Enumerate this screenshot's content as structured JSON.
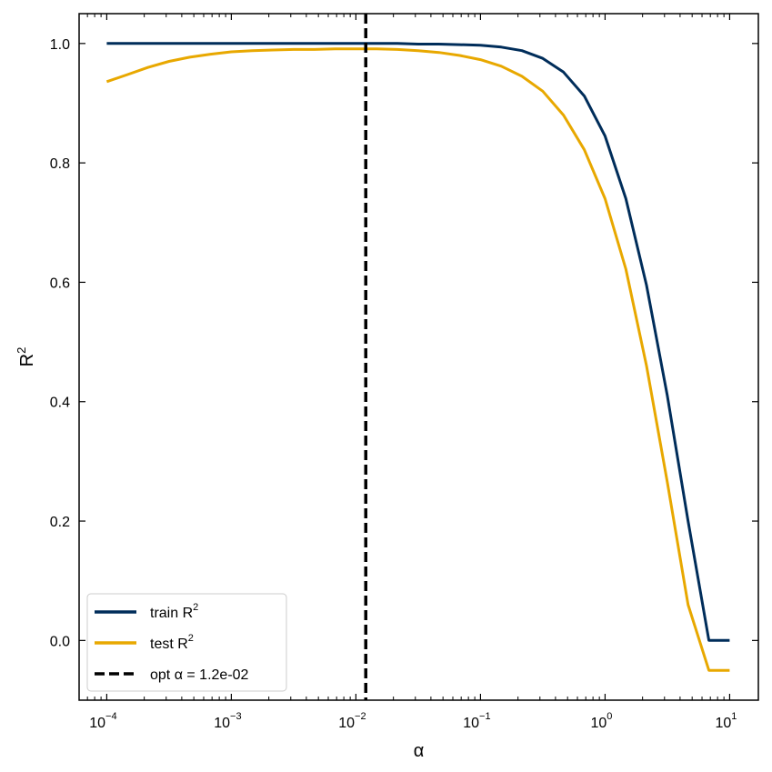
{
  "chart_data": {
    "type": "line",
    "xlabel": "α",
    "ylabel": "R",
    "ylabel_sup": "2",
    "x_scale": "log",
    "xlim": [
      6e-05,
      17
    ],
    "ylim": [
      -0.1,
      1.05
    ],
    "x_ticks": [
      {
        "value": 0.0001,
        "base": "10",
        "exp": "−4"
      },
      {
        "value": 0.001,
        "base": "10",
        "exp": "−3"
      },
      {
        "value": 0.01,
        "base": "10",
        "exp": "−2"
      },
      {
        "value": 0.1,
        "base": "10",
        "exp": "−1"
      },
      {
        "value": 1,
        "base": "10",
        "exp": "0"
      },
      {
        "value": 10,
        "base": "10",
        "exp": "1"
      }
    ],
    "y_ticks": [
      {
        "value": 0.0,
        "label": "0.0"
      },
      {
        "value": 0.2,
        "label": "0.2"
      },
      {
        "value": 0.4,
        "label": "0.4"
      },
      {
        "value": 0.6,
        "label": "0.6"
      },
      {
        "value": 0.8,
        "label": "0.8"
      },
      {
        "value": 1.0,
        "label": "1.0"
      }
    ],
    "grid": false,
    "legend_position": "lower-left",
    "series": [
      {
        "name": "train R",
        "name_sup": "2",
        "color": "#002d5a",
        "style": "solid",
        "x": [
          0.0001,
          0.000147,
          0.000215,
          0.000316,
          0.000464,
          0.000681,
          0.001,
          0.00147,
          0.00215,
          0.00316,
          0.00464,
          0.00681,
          0.01,
          0.0147,
          0.0215,
          0.0316,
          0.0464,
          0.0681,
          0.1,
          0.147,
          0.215,
          0.316,
          0.464,
          0.681,
          1.0,
          1.47,
          2.15,
          3.16,
          4.64,
          6.81,
          10.0
        ],
        "y": [
          1.0,
          1.0,
          1.0,
          1.0,
          1.0,
          1.0,
          1.0,
          1.0,
          1.0,
          1.0,
          1.0,
          1.0,
          1.0,
          1.0,
          1.0,
          0.999,
          0.999,
          0.998,
          0.997,
          0.994,
          0.988,
          0.975,
          0.952,
          0.912,
          0.845,
          0.74,
          0.595,
          0.41,
          0.2,
          0.0,
          0.0
        ]
      },
      {
        "name": "test R",
        "name_sup": "2",
        "color": "#e8a800",
        "style": "solid",
        "x": [
          0.0001,
          0.000147,
          0.000215,
          0.000316,
          0.000464,
          0.000681,
          0.001,
          0.00147,
          0.00215,
          0.00316,
          0.00464,
          0.00681,
          0.01,
          0.0147,
          0.0215,
          0.0316,
          0.0464,
          0.0681,
          0.1,
          0.147,
          0.215,
          0.316,
          0.464,
          0.681,
          1.0,
          1.47,
          2.15,
          3.16,
          4.64,
          6.81,
          10.0
        ],
        "y": [
          0.936,
          0.948,
          0.96,
          0.97,
          0.977,
          0.982,
          0.986,
          0.988,
          0.989,
          0.99,
          0.99,
          0.991,
          0.991,
          0.991,
          0.99,
          0.988,
          0.985,
          0.98,
          0.973,
          0.962,
          0.945,
          0.92,
          0.88,
          0.822,
          0.74,
          0.622,
          0.46,
          0.265,
          0.06,
          -0.05,
          -0.05
        ]
      }
    ],
    "vline": {
      "x": 0.012,
      "color": "#000000",
      "style": "dashed",
      "label": "opt α = 1.2e-02"
    }
  }
}
